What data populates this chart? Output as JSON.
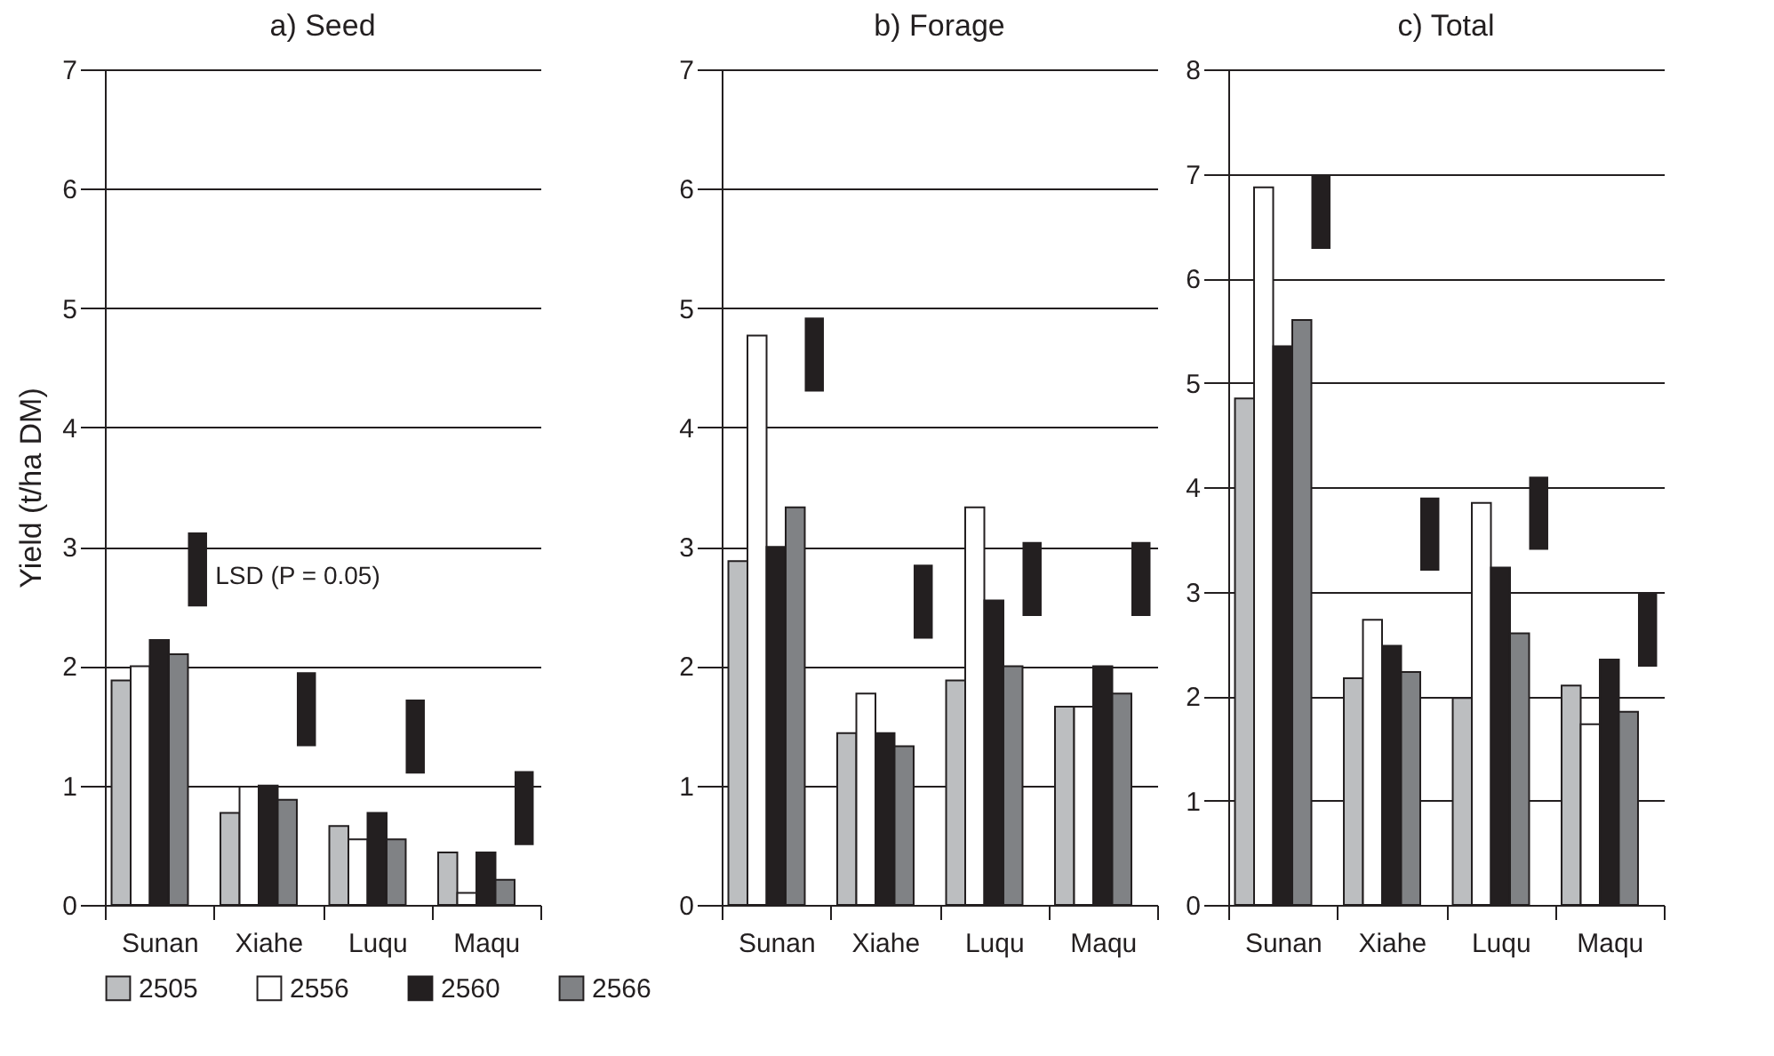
{
  "chart_data": [
    {
      "type": "bar",
      "title": "a) Seed",
      "ylabel": "Yield (t/ha DM)",
      "categories": [
        "Sunan",
        "Xiahe",
        "Luqu",
        "Maqu"
      ],
      "ylim": [
        0,
        7
      ],
      "yticks": [
        0,
        1,
        2,
        3,
        4,
        5,
        6,
        7
      ],
      "grid": "y",
      "legend": "bottom",
      "series": [
        {
          "name": "2505",
          "color": "#bcbec0",
          "values": [
            1.88,
            0.77,
            0.66,
            0.44
          ]
        },
        {
          "name": "2556",
          "color": "#ffffff",
          "values": [
            2.0,
            0.99,
            0.55,
            0.1
          ]
        },
        {
          "name": "2560",
          "color": "#231f20",
          "values": [
            2.22,
            1.0,
            0.77,
            0.44
          ]
        },
        {
          "name": "2566",
          "color": "#808285",
          "values": [
            2.1,
            0.88,
            0.55,
            0.21
          ]
        },
        {
          "name": "LSD (P = 0.05)",
          "color": "#231f20",
          "base": [
            2.5,
            1.33,
            1.1,
            0.5
          ],
          "values": [
            0.62,
            0.62,
            0.62,
            0.62
          ]
        }
      ]
    },
    {
      "type": "bar",
      "title": "b) Forage",
      "categories": [
        "Sunan",
        "Xiahe",
        "Luqu",
        "Maqu"
      ],
      "ylim": [
        0,
        7
      ],
      "yticks": [
        0,
        1,
        2,
        3,
        4,
        5,
        6,
        7
      ],
      "grid": "y",
      "series": [
        {
          "name": "2505",
          "color": "#bcbec0",
          "values": [
            2.88,
            1.44,
            1.88,
            1.66
          ]
        },
        {
          "name": "2556",
          "color": "#ffffff",
          "values": [
            4.77,
            1.77,
            3.33,
            1.66
          ]
        },
        {
          "name": "2560",
          "color": "#231f20",
          "values": [
            3.0,
            1.44,
            2.55,
            2.0
          ]
        },
        {
          "name": "2566",
          "color": "#808285",
          "values": [
            3.33,
            1.33,
            2.0,
            1.77
          ]
        },
        {
          "color": "#231f20",
          "base": [
            4.3,
            2.23,
            2.42,
            2.42
          ],
          "values": [
            0.62,
            0.62,
            0.62,
            0.62
          ]
        }
      ]
    },
    {
      "type": "bar",
      "title": "c) Total",
      "categories": [
        "Sunan",
        "Xiahe",
        "Luqu",
        "Maqu"
      ],
      "ylim": [
        0,
        8
      ],
      "yticks": [
        0,
        1,
        2,
        3,
        4,
        5,
        6,
        7,
        8
      ],
      "grid": "y",
      "series": [
        {
          "name": "2505",
          "color": "#bcbec0",
          "values": [
            4.85,
            2.17,
            1.98,
            2.1
          ]
        },
        {
          "name": "2556",
          "color": "#ffffff",
          "values": [
            6.87,
            2.73,
            3.85,
            1.73
          ]
        },
        {
          "name": "2560",
          "color": "#231f20",
          "values": [
            5.35,
            2.48,
            3.23,
            2.35
          ]
        },
        {
          "name": "2566",
          "color": "#808285",
          "values": [
            5.6,
            2.23,
            2.6,
            1.85
          ]
        },
        {
          "color": "#231f20",
          "base": [
            6.28,
            3.2,
            3.4,
            2.28
          ],
          "values": [
            0.7,
            0.7,
            0.7,
            0.7
          ]
        }
      ]
    }
  ]
}
